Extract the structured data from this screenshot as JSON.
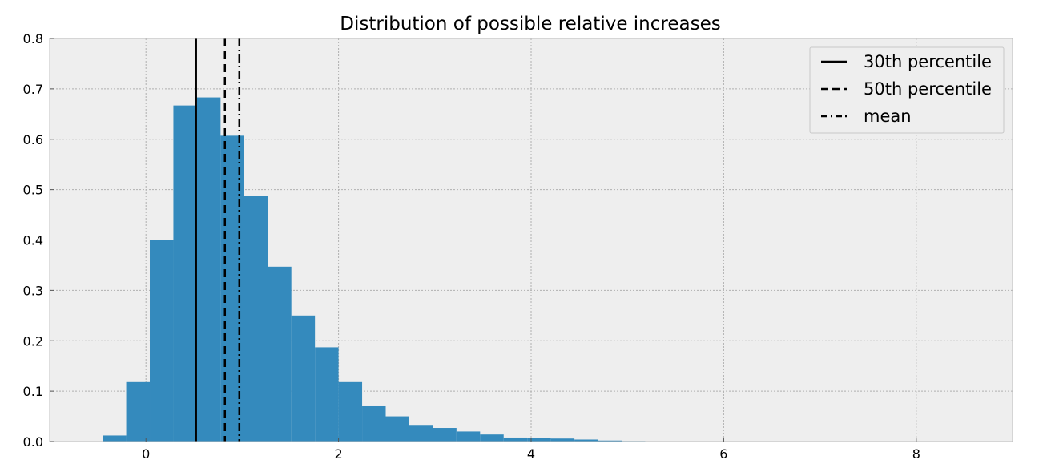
{
  "chart_data": {
    "type": "bar",
    "title": "Distribution of possible relative increases",
    "xlabel": "",
    "ylabel": "",
    "xlim": [
      -1,
      9
    ],
    "ylim": [
      0,
      0.8
    ],
    "grid": true,
    "xticks": [
      "0",
      "2",
      "4",
      "6",
      "8"
    ],
    "yticks": [
      "0.0",
      "0.1",
      "0.2",
      "0.3",
      "0.4",
      "0.5",
      "0.6",
      "0.7",
      "0.8"
    ],
    "bin_width": 0.245,
    "bins": [
      {
        "x0": -0.45,
        "value": 0.012
      },
      {
        "x0": -0.205,
        "value": 0.118
      },
      {
        "x0": 0.04,
        "value": 0.4
      },
      {
        "x0": 0.285,
        "value": 0.667
      },
      {
        "x0": 0.53,
        "value": 0.683
      },
      {
        "x0": 0.775,
        "value": 0.607
      },
      {
        "x0": 1.02,
        "value": 0.487
      },
      {
        "x0": 1.265,
        "value": 0.347
      },
      {
        "x0": 1.51,
        "value": 0.25
      },
      {
        "x0": 1.755,
        "value": 0.187
      },
      {
        "x0": 2.0,
        "value": 0.118
      },
      {
        "x0": 2.245,
        "value": 0.07
      },
      {
        "x0": 2.49,
        "value": 0.05
      },
      {
        "x0": 2.735,
        "value": 0.033
      },
      {
        "x0": 2.98,
        "value": 0.027
      },
      {
        "x0": 3.225,
        "value": 0.02
      },
      {
        "x0": 3.47,
        "value": 0.014
      },
      {
        "x0": 3.715,
        "value": 0.008
      },
      {
        "x0": 3.96,
        "value": 0.007
      },
      {
        "x0": 4.205,
        "value": 0.006
      },
      {
        "x0": 4.45,
        "value": 0.004
      },
      {
        "x0": 4.695,
        "value": 0.002
      },
      {
        "x0": 4.94,
        "value": 0.001
      }
    ],
    "vlines": [
      {
        "name": "30th percentile",
        "x": 0.52,
        "style": "solid"
      },
      {
        "name": "50th percentile",
        "x": 0.82,
        "style": "dashed"
      },
      {
        "name": "mean",
        "x": 0.97,
        "style": "dashdot"
      }
    ],
    "legend": {
      "position": "top-right",
      "entries": [
        "30th percentile",
        "50th percentile",
        "mean"
      ]
    },
    "colors": {
      "bar": "#348abd",
      "background": "#eeeeee",
      "grid": "#b0b0b0",
      "frame": "#bcbcbc",
      "line": "#000000"
    }
  }
}
